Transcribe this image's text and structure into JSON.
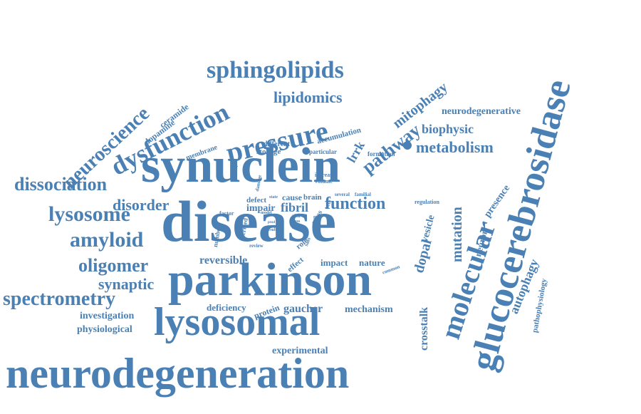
{
  "color": "#4a80b4",
  "words": [
    {
      "text": "neurodegeneration",
      "size": 60
    },
    {
      "text": "synuclein",
      "size": 70
    },
    {
      "text": "disease",
      "size": 82
    },
    {
      "text": "parkinson",
      "size": 66
    },
    {
      "text": "lysosomal",
      "size": 56
    },
    {
      "text": "glucocerebrosidase",
      "size": 52
    },
    {
      "text": "molecular",
      "size": 40
    },
    {
      "text": "pressure",
      "size": 40
    },
    {
      "text": "sphingolipids",
      "size": 34
    },
    {
      "text": "dysfunction",
      "size": 36
    },
    {
      "text": "neuroscience",
      "size": 28
    },
    {
      "text": "lysosome",
      "size": 30
    },
    {
      "text": "amyloid",
      "size": 30
    },
    {
      "text": "dissociation",
      "size": 26
    },
    {
      "text": "spectrometry",
      "size": 28
    },
    {
      "text": "oligomer",
      "size": 26
    },
    {
      "text": "synaptic",
      "size": 22
    },
    {
      "text": "disorder",
      "size": 22
    },
    {
      "text": "metabolism",
      "size": 22
    },
    {
      "text": "lipidomics",
      "size": 22
    },
    {
      "text": "pathway",
      "size": 26
    },
    {
      "text": "mitophagy",
      "size": 20
    },
    {
      "text": "lrrk",
      "size": 18
    },
    {
      "text": "function",
      "size": 24
    },
    {
      "text": "biophysic",
      "size": 18
    },
    {
      "text": "neurodegenerative",
      "size": 14
    },
    {
      "text": "mutation",
      "size": 20
    },
    {
      "text": "presence",
      "size": 14
    },
    {
      "text": "neuron",
      "size": 13
    },
    {
      "text": "dopal",
      "size": 20
    },
    {
      "text": "vesicle",
      "size": 14
    },
    {
      "text": "autophagy",
      "size": 18
    },
    {
      "text": "pathophysiology",
      "size": 11
    },
    {
      "text": "crosstalk",
      "size": 16
    },
    {
      "text": "gaucher",
      "size": 16
    },
    {
      "text": "mechanism",
      "size": 14
    },
    {
      "text": "experimental",
      "size": 14
    },
    {
      "text": "reversible",
      "size": 16
    },
    {
      "text": "impact",
      "size": 13
    },
    {
      "text": "nature",
      "size": 13
    },
    {
      "text": "investigation",
      "size": 14
    },
    {
      "text": "physiological",
      "size": 14
    },
    {
      "text": "deficiency",
      "size": 13
    },
    {
      "text": "protein",
      "size": 12
    },
    {
      "text": "fibril",
      "size": 18
    },
    {
      "text": "impair",
      "size": 14
    },
    {
      "text": "defect",
      "size": 11
    },
    {
      "text": "cause",
      "size": 12
    },
    {
      "text": "brain",
      "size": 11
    },
    {
      "text": "ceramide",
      "size": 12
    },
    {
      "text": "dopamine",
      "size": 12
    },
    {
      "text": "membrane",
      "size": 10
    },
    {
      "text": "accumulation",
      "size": 11
    },
    {
      "text": "different",
      "size": 10
    },
    {
      "text": "storage",
      "size": 11
    },
    {
      "text": "particular",
      "size": 9
    },
    {
      "text": "formation",
      "size": 9
    },
    {
      "text": "increase",
      "size": 8
    },
    {
      "text": "volume",
      "size": 8
    },
    {
      "text": "damage",
      "size": 7
    },
    {
      "text": "several",
      "size": 7
    },
    {
      "text": "familial",
      "size": 7
    },
    {
      "text": "regulation",
      "size": 8
    },
    {
      "text": "factor",
      "size": 8
    },
    {
      "text": "number",
      "size": 9
    },
    {
      "text": "derived",
      "size": 9
    },
    {
      "text": "effect",
      "size": 11
    },
    {
      "text": "role",
      "size": 11
    },
    {
      "text": "common",
      "size": 7
    },
    {
      "text": "review",
      "size": 7
    },
    {
      "text": "result",
      "size": 6
    },
    {
      "text": "model",
      "size": 6
    },
    {
      "text": "state",
      "size": 6
    },
    {
      "text": "risk",
      "size": 7
    },
    {
      "text": "mass",
      "size": 10
    },
    {
      "text": "sals",
      "size": 8
    },
    {
      "text": "ftir",
      "size": 7
    },
    {
      "text": "beta",
      "size": 7
    },
    {
      "text": "loss",
      "size": 6
    },
    {
      "text": "gene",
      "size": 6
    },
    {
      "text": "prod",
      "size": 5
    }
  ]
}
